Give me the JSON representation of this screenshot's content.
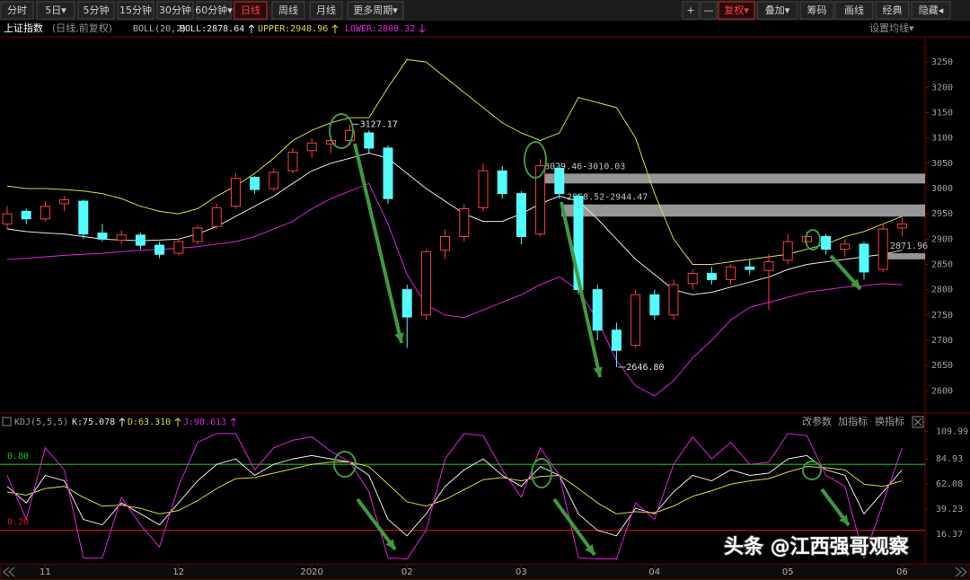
{
  "toolbar": {
    "left": [
      "分时",
      "5日▾",
      "5分钟",
      "15分钟",
      "30分钟",
      "60分钟▾",
      "日线",
      "周线",
      "月线",
      "更多周期▾"
    ],
    "right": [
      "+",
      "—",
      "复权▾",
      "叠加▾",
      "筹码",
      "画线",
      "经典",
      "隐藏◂"
    ]
  },
  "settings_label": "设置均线▾",
  "panel_buttons": [
    "改参数",
    "加指标",
    "换指标"
  ],
  "watermark": "头条 @江西强哥观察",
  "chart_data": [
    {
      "type": "candlestick",
      "title": "上证指数",
      "subtitle": "(日线,前复权)",
      "indicator": "BOLL(20,2)",
      "up_color": "#ff3c3c",
      "down_color": "#54fcfc",
      "categories": [
        null,
        null,
        "11",
        null,
        null,
        null,
        null,
        null,
        null,
        "12",
        null,
        null,
        null,
        null,
        null,
        null,
        "2020",
        null,
        null,
        null,
        null,
        "02",
        null,
        null,
        null,
        null,
        null,
        "03",
        null,
        null,
        null,
        null,
        null,
        null,
        "04",
        null,
        null,
        null,
        null,
        null,
        null,
        "05",
        null,
        null,
        null,
        null,
        null,
        "06"
      ],
      "candles": [
        [
          2930,
          2965,
          2920,
          2950
        ],
        [
          2955,
          2960,
          2930,
          2940
        ],
        [
          2940,
          2975,
          2935,
          2965
        ],
        [
          2970,
          2985,
          2955,
          2978
        ],
        [
          2975,
          2978,
          2900,
          2910
        ],
        [
          2912,
          2930,
          2895,
          2900
        ],
        [
          2898,
          2918,
          2890,
          2908
        ],
        [
          2908,
          2912,
          2880,
          2888
        ],
        [
          2888,
          2895,
          2862,
          2870
        ],
        [
          2872,
          2900,
          2868,
          2895
        ],
        [
          2895,
          2928,
          2890,
          2922
        ],
        [
          2925,
          2970,
          2920,
          2962
        ],
        [
          2965,
          3030,
          2960,
          3020
        ],
        [
          3022,
          3025,
          2990,
          2998
        ],
        [
          3000,
          3040,
          2995,
          3032
        ],
        [
          3035,
          3080,
          3030,
          3072
        ],
        [
          3075,
          3100,
          3060,
          3090
        ],
        [
          3088,
          3105,
          3070,
          3095
        ],
        [
          3095,
          3127.17,
          3085,
          3115
        ],
        [
          3110,
          3115,
          3070,
          3080
        ],
        [
          3080,
          3085,
          2970,
          2980
        ],
        [
          2800,
          2810,
          2685,
          2746
        ],
        [
          2750,
          2880,
          2740,
          2875
        ],
        [
          2878,
          2920,
          2860,
          2905
        ],
        [
          2905,
          2970,
          2895,
          2960
        ],
        [
          2962,
          3050,
          2955,
          3035
        ],
        [
          3035,
          3045,
          2980,
          2990
        ],
        [
          2990,
          2995,
          2890,
          2905
        ],
        [
          2910,
          3058,
          2905,
          3045
        ],
        [
          3040,
          3045,
          2980,
          2990
        ],
        [
          2985,
          2990,
          2790,
          2800
        ],
        [
          2800,
          2810,
          2700,
          2720
        ],
        [
          2720,
          2735,
          2646.8,
          2680
        ],
        [
          2690,
          2800,
          2685,
          2790
        ],
        [
          2790,
          2800,
          2740,
          2750
        ],
        [
          2750,
          2820,
          2740,
          2810
        ],
        [
          2812,
          2840,
          2800,
          2832
        ],
        [
          2832,
          2845,
          2810,
          2820
        ],
        [
          2820,
          2850,
          2810,
          2845
        ],
        [
          2845,
          2860,
          2830,
          2840
        ],
        [
          2838,
          2870,
          2760,
          2855
        ],
        [
          2858,
          2910,
          2850,
          2895
        ],
        [
          2895,
          2915,
          2885,
          2905
        ],
        [
          2905,
          2910,
          2870,
          2880
        ],
        [
          2880,
          2900,
          2865,
          2890
        ],
        [
          2890,
          2895,
          2820,
          2835
        ],
        [
          2840,
          2930,
          2835,
          2920
        ],
        [
          2922,
          2945,
          2905,
          2930
        ]
      ],
      "series": [
        {
          "name": "BOLL:2878.64",
          "color": "#e8e8e8",
          "values": [
            2920,
            2915,
            2912,
            2910,
            2905,
            2900,
            2898,
            2897,
            2898,
            2900,
            2910,
            2925,
            2945,
            2965,
            2985,
            3010,
            3035,
            3050,
            3060,
            3070,
            3060,
            3030,
            3000,
            2975,
            2950,
            2935,
            2935,
            2950,
            2970,
            2985,
            2975,
            2940,
            2900,
            2860,
            2830,
            2800,
            2790,
            2795,
            2805,
            2815,
            2825,
            2840,
            2850,
            2855,
            2860,
            2865,
            2870,
            2878
          ]
        },
        {
          "name": "UPPER:2948.96",
          "color": "#d8d840",
          "values": [
            3005,
            3000,
            3000,
            2998,
            2995,
            2990,
            2980,
            2965,
            2955,
            2950,
            2960,
            2985,
            3005,
            3030,
            3060,
            3095,
            3115,
            3130,
            3140,
            3140,
            3200,
            3255,
            3250,
            3220,
            3190,
            3160,
            3130,
            3110,
            3095,
            3110,
            3180,
            3170,
            3160,
            3100,
            2990,
            2900,
            2850,
            2850,
            2855,
            2860,
            2865,
            2870,
            2880,
            2890,
            2905,
            2915,
            2930,
            2945
          ]
        },
        {
          "name": "LOWER:2808.32",
          "color": "#e020e0",
          "values": [
            2860,
            2862,
            2865,
            2868,
            2870,
            2872,
            2875,
            2878,
            2880,
            2882,
            2885,
            2890,
            2895,
            2905,
            2920,
            2935,
            2960,
            2980,
            2995,
            3010,
            2930,
            2830,
            2770,
            2750,
            2745,
            2760,
            2775,
            2790,
            2810,
            2825,
            2800,
            2740,
            2660,
            2610,
            2590,
            2620,
            2665,
            2700,
            2740,
            2765,
            2775,
            2785,
            2795,
            2800,
            2805,
            2808,
            2812,
            2810
          ]
        }
      ],
      "zones": [
        {
          "label": "3029.46-3010.03",
          "from": 3010.03,
          "to": 3029.46
        },
        {
          "label": "2968.52-2944.47",
          "from": 2944.47,
          "to": 2968.52
        },
        {
          "label": "2871.96",
          "from": 2860,
          "to": 2871.96
        }
      ],
      "annotations": [
        {
          "text": "3127.17",
          "value": 3127.17
        },
        {
          "text": "2646.80",
          "value": 2646.8
        }
      ],
      "ylim": [
        2565,
        3300
      ],
      "yticks": [
        3250,
        3200,
        3150,
        3100,
        3050,
        3000,
        2950,
        2900,
        2850,
        2800,
        2750,
        2700,
        2650,
        2600
      ]
    },
    {
      "type": "line",
      "title": "KDJ(5,5,5)",
      "series": [
        {
          "name": "K:75.078",
          "color": "#e8e8e8",
          "values": [
            60,
            45,
            70,
            65,
            30,
            25,
            45,
            35,
            25,
            45,
            65,
            80,
            85,
            70,
            80,
            85,
            88,
            85,
            82,
            70,
            30,
            15,
            35,
            60,
            75,
            85,
            70,
            60,
            78,
            70,
            35,
            20,
            15,
            40,
            35,
            55,
            70,
            65,
            75,
            70,
            72,
            85,
            88,
            75,
            70,
            35,
            55,
            75
          ]
        },
        {
          "name": "D:63.310",
          "color": "#d8d840",
          "values": [
            55,
            52,
            58,
            60,
            50,
            42,
            43,
            40,
            35,
            38,
            47,
            58,
            67,
            68,
            72,
            76,
            80,
            82,
            82,
            78,
            62,
            46,
            42,
            48,
            57,
            66,
            68,
            65,
            69,
            70,
            58,
            45,
            35,
            37,
            36,
            42,
            51,
            56,
            62,
            65,
            67,
            73,
            78,
            77,
            75,
            62,
            60,
            65
          ]
        },
        {
          "name": "J:98.613",
          "color": "#e020e0",
          "values": [
            70,
            30,
            95,
            75,
            -5,
            -5,
            50,
            25,
            5,
            60,
            100,
            108,
            108,
            75,
            95,
            102,
            105,
            92,
            82,
            55,
            -5,
            -6,
            20,
            85,
            108,
            106,
            75,
            50,
            95,
            70,
            -5,
            -6,
            -6,
            45,
            30,
            80,
            105,
            85,
            100,
            80,
            82,
            108,
            106,
            70,
            60,
            -5,
            45,
            95
          ]
        }
      ],
      "reference_lines": [
        {
          "value": 80,
          "label": "0.80",
          "color": "#10c010"
        },
        {
          "value": 20,
          "label": "0.20",
          "color": "#e01010"
        }
      ],
      "ylim": [
        -8,
        112
      ],
      "yticks": [
        109.99,
        84.93,
        62.08,
        39.23,
        16.37
      ]
    }
  ]
}
